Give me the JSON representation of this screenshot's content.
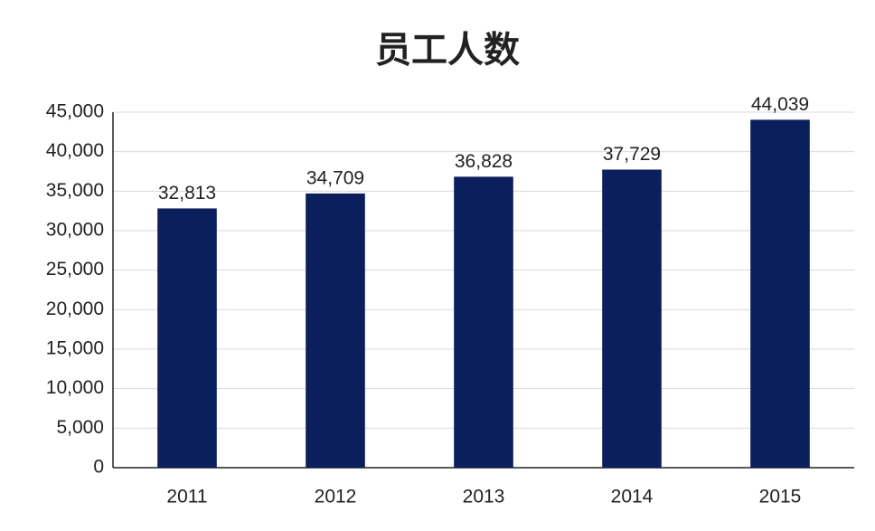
{
  "chart_data": {
    "type": "bar",
    "title": "员工人数",
    "categories": [
      "2011",
      "2012",
      "2013",
      "2014",
      "2015"
    ],
    "values": [
      32813,
      34709,
      36828,
      37729,
      44039
    ],
    "value_labels": [
      "32,813",
      "34,709",
      "36,828",
      "37,729",
      "44,039"
    ],
    "color": "#0a1f5c",
    "ylim": [
      0,
      45000
    ],
    "yticks": [
      0,
      {
        "value": 5000,
        "label": "5,000"
      },
      {
        "value": 10000,
        "label": "10,000"
      },
      {
        "value": 15000,
        "label": "15,000"
      },
      {
        "value": 20000,
        "label": "20,000"
      },
      {
        "value": 25000,
        "label": "25,000"
      },
      {
        "value": 30000,
        "label": "30,000"
      },
      {
        "value": 35000,
        "label": "35,000"
      },
      {
        "value": 40000,
        "label": "40,000"
      },
      {
        "value": 45000,
        "label": "45,000"
      }
    ],
    "grid": true
  }
}
